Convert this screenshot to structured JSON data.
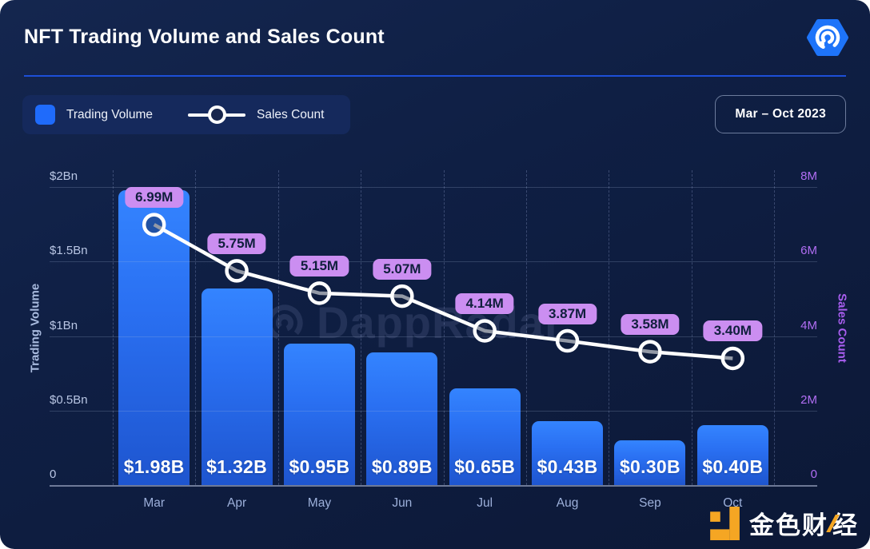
{
  "header": {
    "title": "NFT Trading Volume and Sales Count"
  },
  "legend": {
    "volume_label": "Trading Volume",
    "sales_label": "Sales Count"
  },
  "period_badge": {
    "label": "Mar – Oct 2023"
  },
  "watermark": {
    "text": "DappRadar"
  },
  "footer_brand": {
    "text_left": "金色财",
    "text_right": "经"
  },
  "colors": {
    "card_bg": "#0f1f44",
    "divider_blue": "#1d4fd8",
    "bar_top": "#3484ff",
    "bar_bottom": "#1e55cf",
    "legend_swatch": "#1f6bfb",
    "line": "#ffffff",
    "badge_bg": "#cb8ef1",
    "badge_text": "#101f3d",
    "left_axis_text": "#b9c6e4",
    "right_axis_text": "#b16ef3",
    "month_text": "#9db0da",
    "brand_hexagon_blue": "#1e74f9",
    "footer_orange": "#f5a623"
  },
  "chart_data": {
    "type": "bar+line",
    "categories": [
      "Mar",
      "Apr",
      "May",
      "Jun",
      "Jul",
      "Aug",
      "Sep",
      "Oct"
    ],
    "series": [
      {
        "name": "Trading Volume",
        "type": "bar",
        "axis": "left",
        "unit": "USD billions",
        "values": [
          1.98,
          1.32,
          0.95,
          0.89,
          0.65,
          0.43,
          0.3,
          0.4
        ],
        "labels": [
          "$1.98B",
          "$1.32B",
          "$0.95B",
          "$0.89B",
          "$0.65B",
          "$0.43B",
          "$0.30B",
          "$0.40B"
        ]
      },
      {
        "name": "Sales Count",
        "type": "line",
        "axis": "right",
        "unit": "millions",
        "values": [
          6.99,
          5.75,
          5.15,
          5.07,
          4.14,
          3.87,
          3.58,
          3.4
        ],
        "labels": [
          "6.99M",
          "5.75M",
          "5.15M",
          "5.07M",
          "4.14M",
          "3.87M",
          "3.58M",
          "3.40M"
        ]
      }
    ],
    "left_axis": {
      "title": "Trading Volume",
      "range": [
        0,
        2
      ],
      "ticks": [
        {
          "label": "$2Bn",
          "value": 2
        },
        {
          "label": "$1.5Bn",
          "value": 1.5
        },
        {
          "label": "$1Bn",
          "value": 1
        },
        {
          "label": "$0.5Bn",
          "value": 0.5
        },
        {
          "label": "0",
          "value": 0
        }
      ]
    },
    "right_axis": {
      "title": "Sales Count",
      "range": [
        0,
        8
      ],
      "ticks": [
        {
          "label": "8M",
          "value": 8
        },
        {
          "label": "6M",
          "value": 6
        },
        {
          "label": "4M",
          "value": 4
        },
        {
          "label": "2M",
          "value": 2
        },
        {
          "label": "0",
          "value": 0
        }
      ]
    },
    "grid": {
      "horizontal": true,
      "vertical_dashed": true
    },
    "legend_position": "top-left",
    "title": "NFT Trading Volume and Sales Count",
    "period": "Mar – Oct 2023"
  }
}
